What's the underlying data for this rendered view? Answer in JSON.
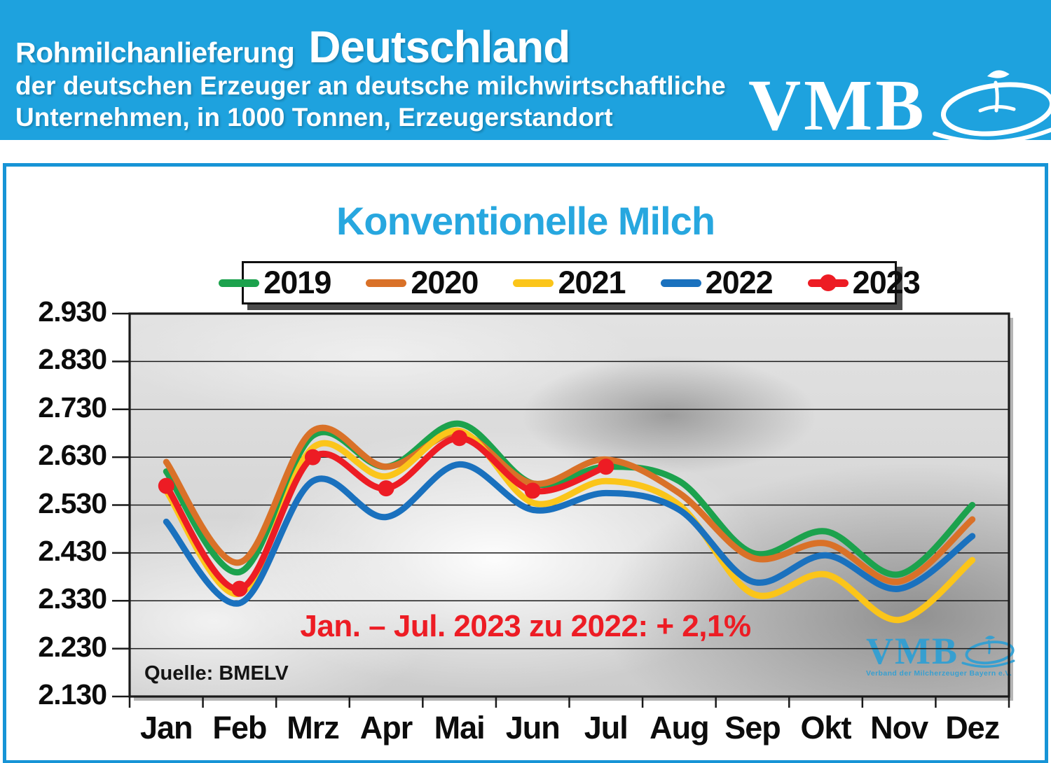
{
  "header": {
    "title_small": "Rohmilchanlieferung",
    "title_large": "Deutschland",
    "subtitle_line1": "der deutschen Erzeuger an deutsche milchwirtschaftliche",
    "subtitle_line2": "Unternehmen, in 1000 Tonnen, Erzeugerstandort",
    "logo_text": "VMB",
    "band_color": "#1EA2DE"
  },
  "panel": {
    "border_color": "#1794D6",
    "title": "Konventionelle Milch",
    "title_color": "#27A7DF"
  },
  "chart_data": {
    "type": "line",
    "title": "Konventionelle Milch",
    "unit": "1000 Tonnen",
    "categories": [
      "Jan",
      "Feb",
      "Mrz",
      "Apr",
      "Mai",
      "Jun",
      "Jul",
      "Aug",
      "Sep",
      "Okt",
      "Nov",
      "Dez"
    ],
    "y_tick_labels": [
      "2.930",
      "2.830",
      "2.730",
      "2.630",
      "2.530",
      "2.430",
      "2.330",
      "2.230",
      "2.130"
    ],
    "ylim": [
      2130,
      2930
    ],
    "y_step": 100,
    "grid": true,
    "legend_position": "top",
    "series": [
      {
        "name": "2019",
        "color": "#1CA24D",
        "marker": false,
        "values": [
          2600,
          2390,
          2675,
          2610,
          2700,
          2575,
          2610,
          2580,
          2430,
          2475,
          2385,
          2530
        ]
      },
      {
        "name": "2020",
        "color": "#D97128",
        "marker": false,
        "values": [
          2620,
          2410,
          2685,
          2610,
          2680,
          2575,
          2625,
          2555,
          2420,
          2450,
          2370,
          2500
        ]
      },
      {
        "name": "2021",
        "color": "#FBC51A",
        "marker": false,
        "values": [
          2560,
          2345,
          2650,
          2590,
          2685,
          2535,
          2580,
          2530,
          2345,
          2385,
          2290,
          2415
        ]
      },
      {
        "name": "2022",
        "color": "#1A71BE",
        "marker": false,
        "values": [
          2495,
          2325,
          2580,
          2505,
          2615,
          2520,
          2555,
          2520,
          2370,
          2425,
          2355,
          2465
        ]
      },
      {
        "name": "2023",
        "color": "#ED1C24",
        "marker": true,
        "values": [
          2570,
          2355,
          2630,
          2565,
          2670,
          2560,
          2610,
          null,
          null,
          null,
          null,
          null
        ]
      }
    ],
    "annotation": "Jan. – Jul. 2023 zu 2022: + 2,1%",
    "annotation_color": "#ED1C24",
    "source": "Quelle: BMELV"
  },
  "watermark": {
    "text": "VMB",
    "subtext": "Verband der Milcherzeuger Bayern e.V.",
    "color": "#2E9FD4"
  }
}
